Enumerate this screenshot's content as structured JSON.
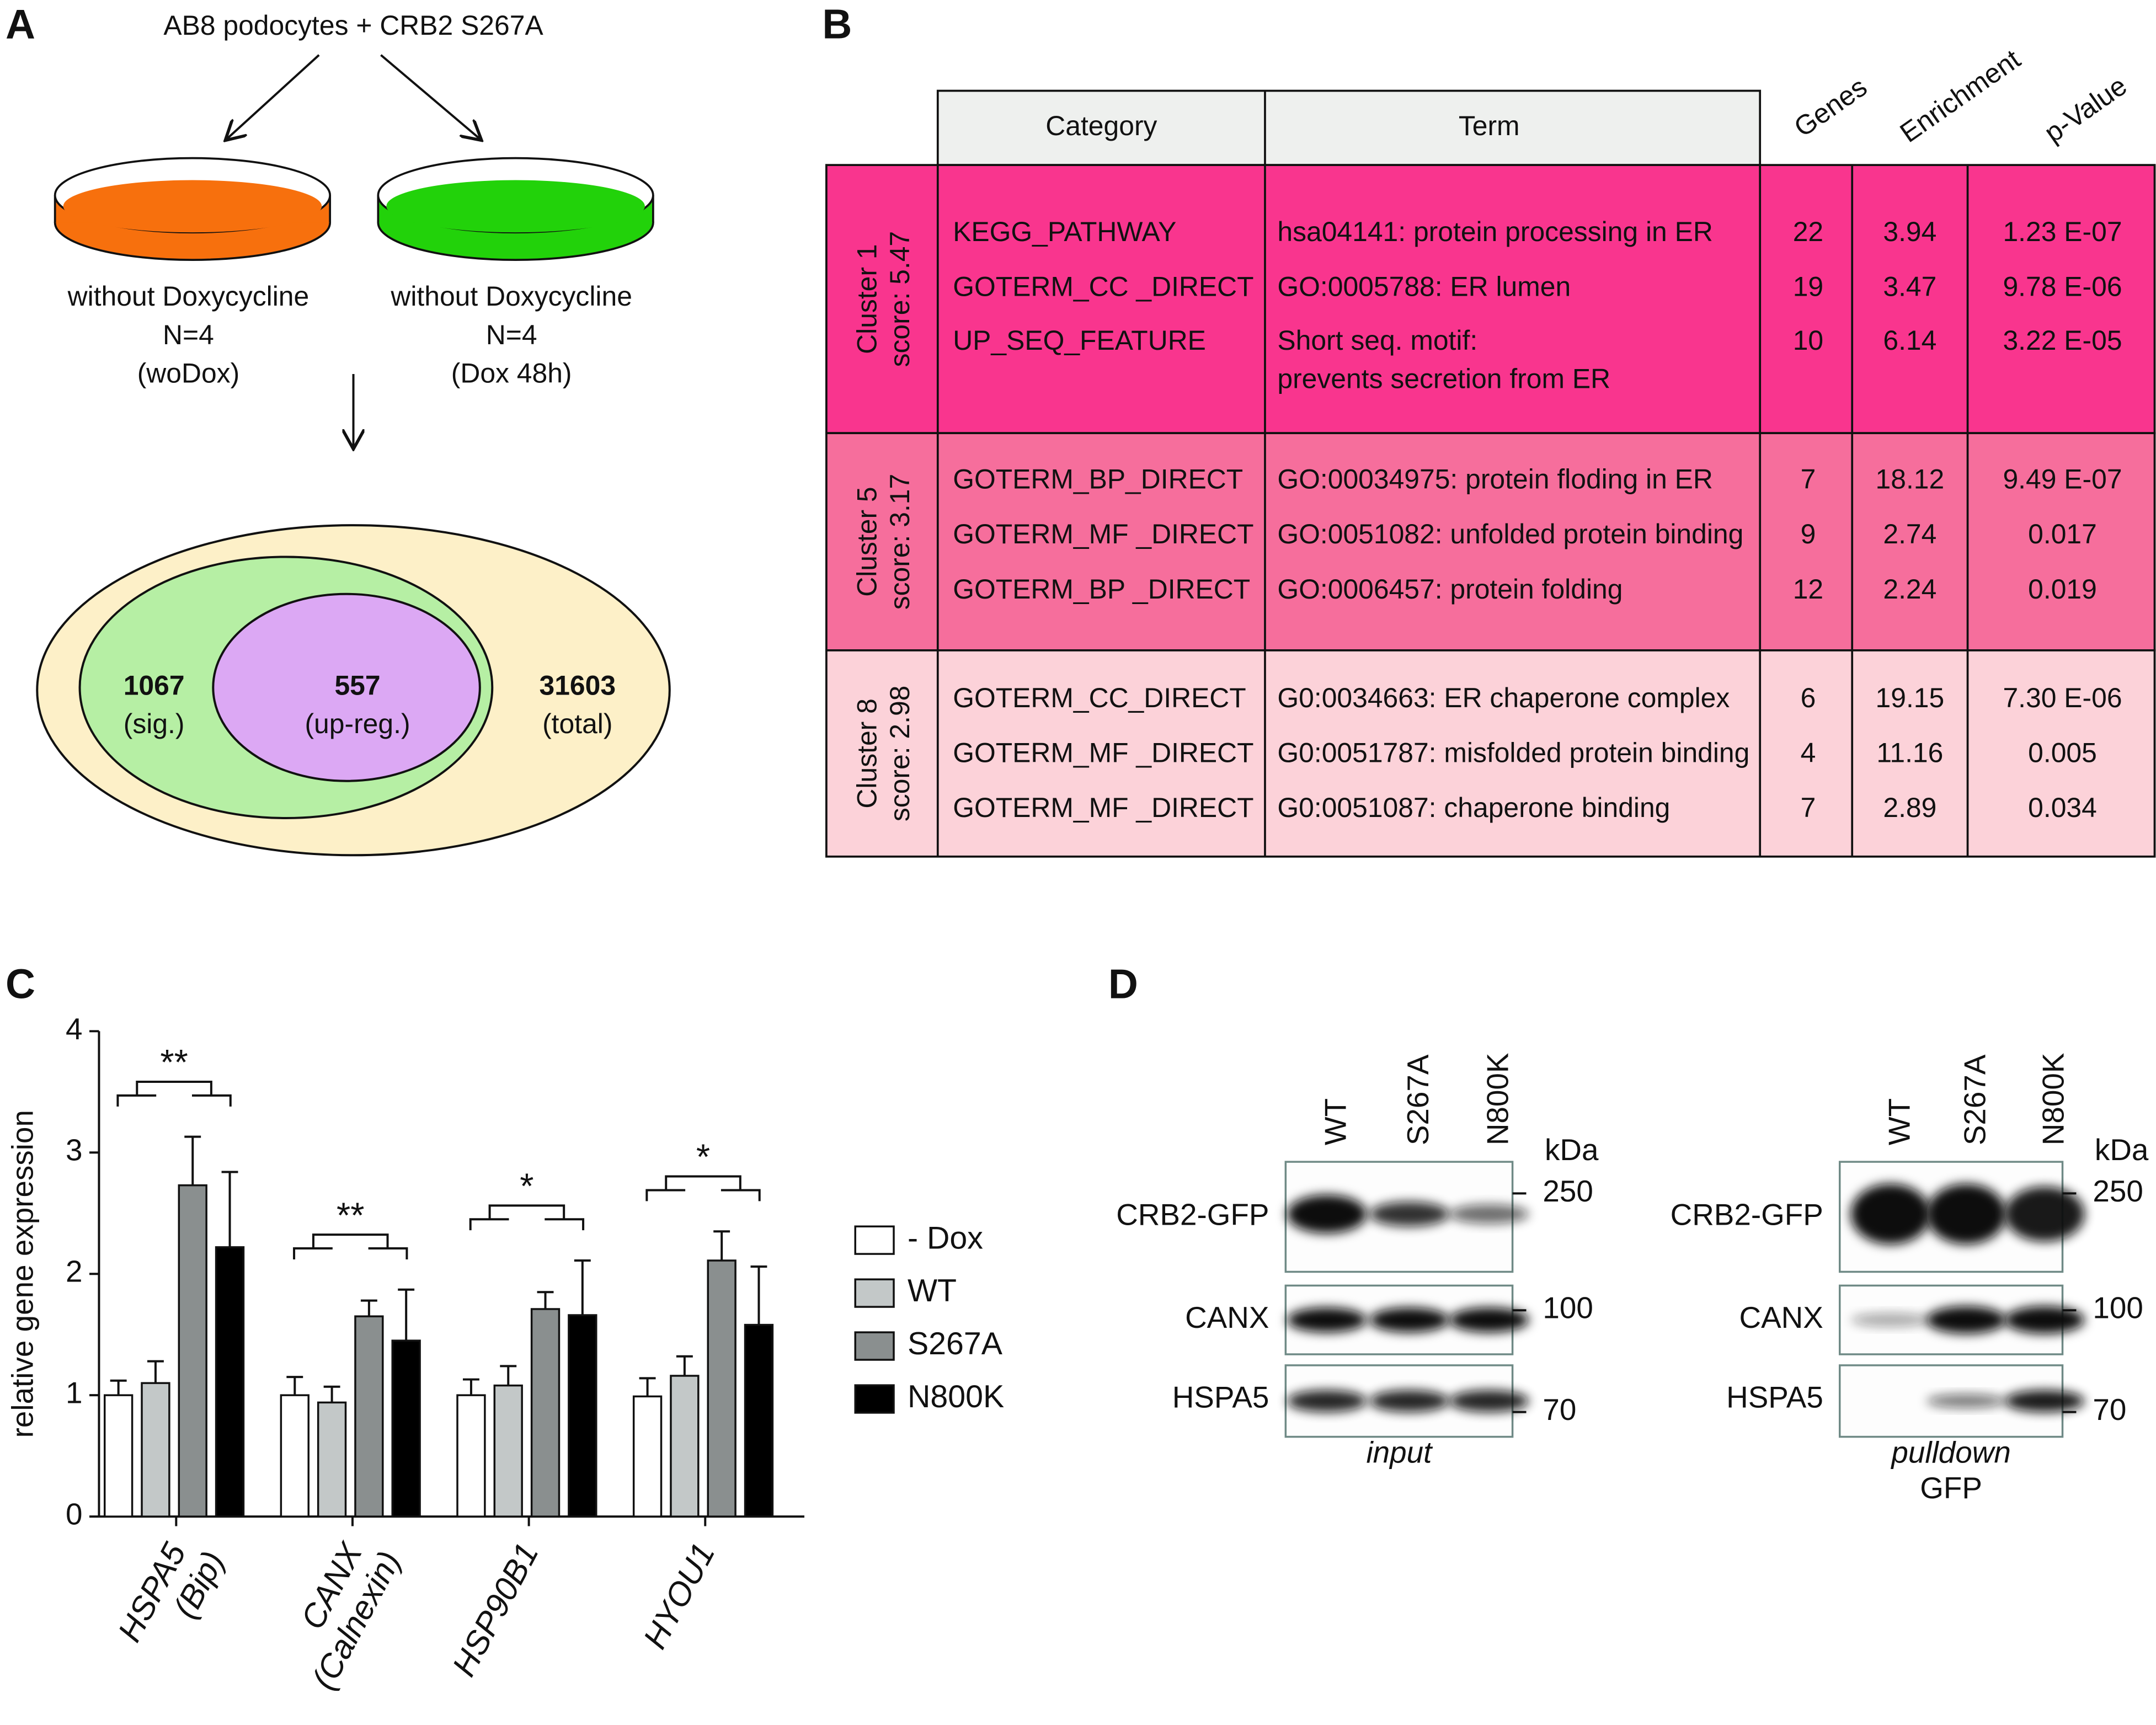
{
  "panel_labels": [
    "A",
    "B",
    "C",
    "D"
  ],
  "panel_a": {
    "title": "AB8 podocytes + CRB2 S267A",
    "dishes": [
      {
        "lines": [
          "without Doxycycline",
          "N=4",
          "(woDox)"
        ],
        "color": "#f7700d"
      },
      {
        "lines": [
          "without Doxycycline",
          "N=4",
          "(Dox 48h)"
        ],
        "color": "#22d20a"
      }
    ],
    "sets": [
      {
        "count": 1067,
        "label": "(sig.)"
      },
      {
        "count": 557,
        "label": "(up-reg.)"
      },
      {
        "count": 31603,
        "label": "(total)"
      }
    ]
  },
  "panel_b": {
    "headers": [
      "Category",
      "Term",
      "Genes",
      "Enrichment",
      "p-Value"
    ],
    "clusters": [
      {
        "name": "Cluster 1",
        "score": "score: 5.47",
        "color": "#f9358e",
        "rows": [
          {
            "category": "KEGG_PATHWAY",
            "term": [
              "hsa04141: protein processing in ER"
            ],
            "genes": 22,
            "enrichment": 3.94,
            "p_value": "1.23 E-07"
          },
          {
            "category": "GOTERM_CC _DIRECT",
            "term": [
              "GO:0005788: ER lumen"
            ],
            "genes": 19,
            "enrichment": 3.47,
            "p_value": "9.78 E-06"
          },
          {
            "category": "UP_SEQ_FEATURE",
            "term": [
              "Short seq. motif:",
              "prevents secretion from ER"
            ],
            "genes": 10,
            "enrichment": 6.14,
            "p_value": "3.22 E-05"
          }
        ]
      },
      {
        "name": "Cluster 5",
        "score": "score: 3.17",
        "color": "#f66e9c",
        "rows": [
          {
            "category": "GOTERM_BP_DIRECT",
            "term": [
              "GO:00034975: protein floding in ER"
            ],
            "genes": 7,
            "enrichment": 18.12,
            "p_value": "9.49 E-07"
          },
          {
            "category": "GOTERM_MF _DIRECT",
            "term": [
              "GO:0051082: unfolded protein binding"
            ],
            "genes": 9,
            "enrichment": 2.74,
            "p_value": "0.017"
          },
          {
            "category": "GOTERM_BP _DIRECT",
            "term": [
              "GO:0006457: protein folding"
            ],
            "genes": 12,
            "enrichment": 2.24,
            "p_value": "0.019"
          }
        ]
      },
      {
        "name": "Cluster 8",
        "score": "score: 2.98",
        "color": "#fcd2d9",
        "rows": [
          {
            "category": "GOTERM_CC_DIRECT",
            "term": [
              "G0:0034663: ER chaperone complex"
            ],
            "genes": 6,
            "enrichment": 19.15,
            "p_value": "7.30 E-06"
          },
          {
            "category": "GOTERM_MF _DIRECT",
            "term": [
              "G0:0051787: misfolded protein binding"
            ],
            "genes": 4,
            "enrichment": 11.16,
            "p_value": "0.005"
          },
          {
            "category": "GOTERM_MF _DIRECT",
            "term": [
              "G0:0051087: chaperone binding"
            ],
            "genes": 7,
            "enrichment": 2.89,
            "p_value": "0.034"
          }
        ]
      }
    ]
  },
  "chart_data": {
    "type": "bar",
    "y_label": "relative gene expression",
    "categories": [
      "HSPA5",
      "CANX",
      "HSP90B1",
      "HYOU1"
    ],
    "category_sublabels": [
      "(Bip)",
      "(Calnexin)",
      null,
      null
    ],
    "series": [
      {
        "name": "- Dox",
        "color": "#ffffff",
        "values": [
          1.0,
          1.0,
          1.0,
          0.99
        ],
        "errors": [
          0.12,
          0.15,
          0.13,
          0.15
        ]
      },
      {
        "name": "WT",
        "color": "#c3c8c8",
        "values": [
          1.1,
          0.94,
          1.08,
          1.16
        ],
        "errors": [
          0.18,
          0.13,
          0.16,
          0.16
        ]
      },
      {
        "name": "S267A",
        "color": "#8a8f8f",
        "values": [
          2.73,
          1.65,
          1.71,
          2.11
        ],
        "errors": [
          0.4,
          0.13,
          0.14,
          0.24
        ]
      },
      {
        "name": "N800K",
        "color": "#000000",
        "values": [
          2.22,
          1.45,
          1.66,
          1.58
        ],
        "errors": [
          0.62,
          0.42,
          0.45,
          0.48
        ]
      }
    ],
    "significance": [
      "**",
      "**",
      "*",
      "*"
    ],
    "ylim": [
      0,
      4
    ],
    "yticks": [
      0,
      1,
      2,
      3,
      4
    ],
    "legend": "right"
  },
  "panel_d": {
    "lanes": [
      "WT",
      "S267A",
      "N800K"
    ],
    "unit": "kDa",
    "proteins": [
      "CRB2-GFP",
      "CANX",
      "HSPA5"
    ],
    "markers": [
      250,
      100,
      70
    ],
    "blots": [
      {
        "caption": [
          "input"
        ]
      },
      {
        "caption": [
          "pulldown",
          "GFP"
        ]
      }
    ]
  }
}
